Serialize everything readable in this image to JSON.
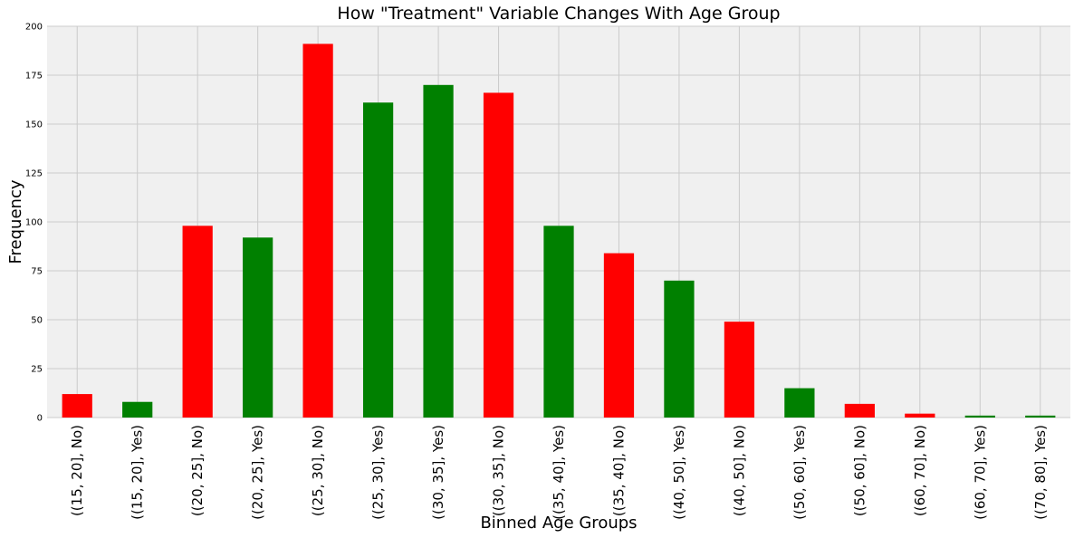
{
  "chart_data": {
    "type": "bar",
    "title": "How \"Treatment\" Variable Changes With Age Group",
    "xlabel": "Binned Age Groups",
    "ylabel": "Frequency",
    "ylim": [
      0,
      200
    ],
    "yticks": [
      0,
      25,
      50,
      75,
      100,
      125,
      150,
      175,
      200
    ],
    "grid": true,
    "background": "#f0f0f0",
    "grid_color": "#cbcbcb",
    "colors": {
      "No": "#ff0000",
      "Yes": "#008000"
    },
    "categories": [
      "((15, 20], No)",
      "((15, 20], Yes)",
      "((20, 25], No)",
      "((20, 25], Yes)",
      "((25, 30], No)",
      "((25, 30], Yes)",
      "((30, 35], Yes)",
      "((30, 35], No)",
      "((35, 40], Yes)",
      "((35, 40], No)",
      "((40, 50], Yes)",
      "((40, 50], No)",
      "((50, 60], Yes)",
      "((50, 60], No)",
      "((60, 70], No)",
      "((60, 70], Yes)",
      "((70, 80], Yes)"
    ],
    "treatment": [
      "No",
      "Yes",
      "No",
      "Yes",
      "No",
      "Yes",
      "Yes",
      "No",
      "Yes",
      "No",
      "Yes",
      "No",
      "Yes",
      "No",
      "No",
      "Yes",
      "Yes"
    ],
    "values": [
      12,
      8,
      98,
      92,
      191,
      161,
      170,
      166,
      98,
      84,
      70,
      49,
      15,
      7,
      2,
      1,
      1
    ]
  }
}
